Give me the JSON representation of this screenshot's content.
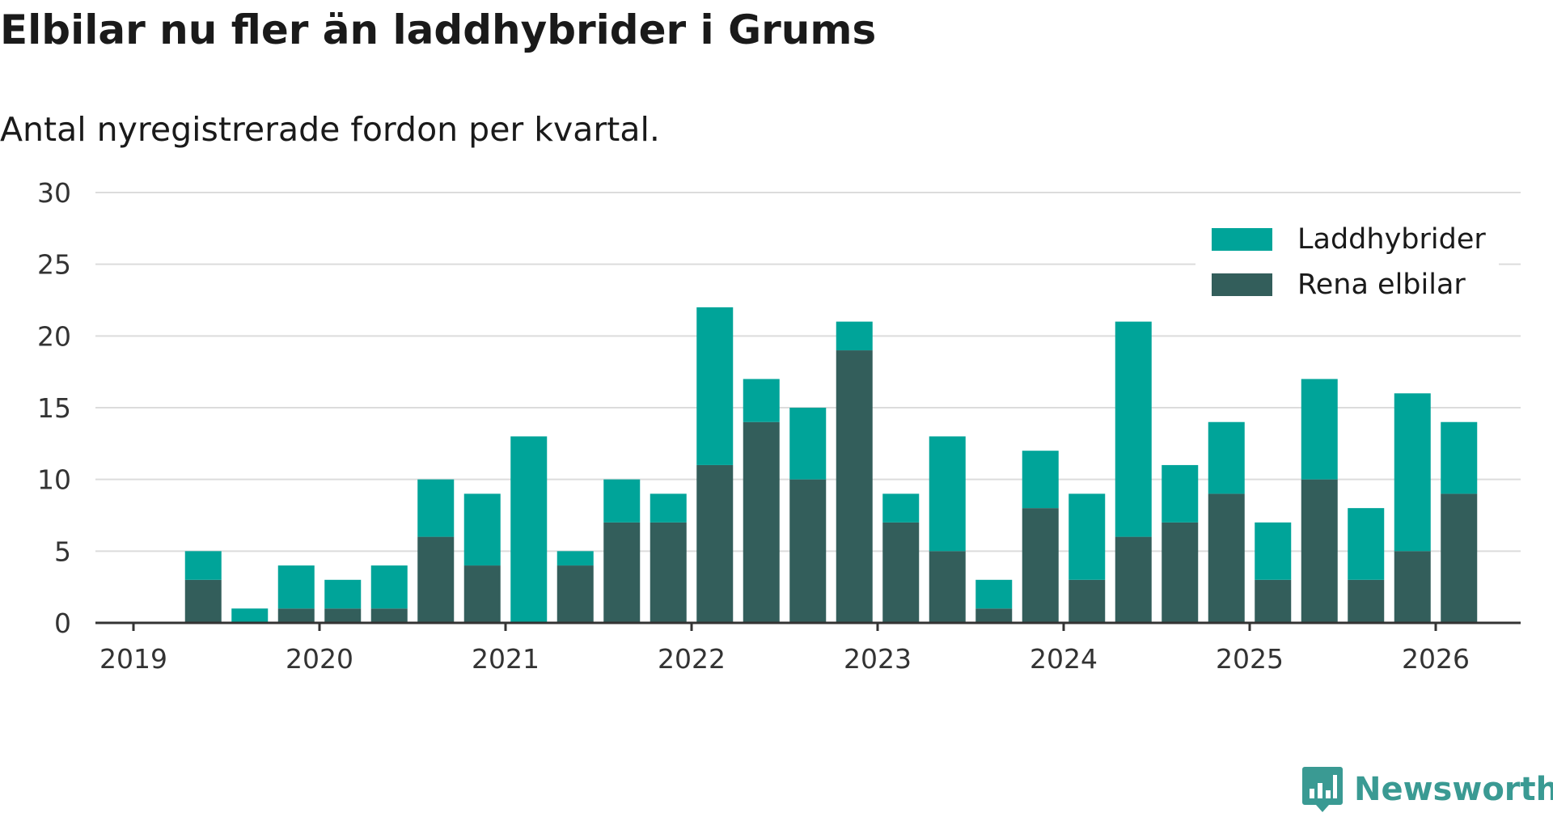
{
  "chart_data": {
    "type": "bar",
    "stacked": true,
    "title": "Elbilar nu fler än laddhybrider i Grums",
    "subtitle": "Antal nyregistrerade fordon per kvartal.",
    "xlabel": "",
    "ylabel": "",
    "ylim": [
      0,
      30
    ],
    "yticks": [
      0,
      5,
      10,
      15,
      20,
      25,
      30
    ],
    "xticks": [
      "2019",
      "2020",
      "2021",
      "2022",
      "2023",
      "2024",
      "2025",
      "2026"
    ],
    "grid": true,
    "legend_position": "top-right",
    "categories": [
      "2019 Q2",
      "2019 Q3",
      "2019 Q4",
      "2020 Q1",
      "2020 Q2",
      "2020 Q3",
      "2020 Q4",
      "2021 Q1",
      "2021 Q2",
      "2021 Q3",
      "2021 Q4",
      "2022 Q1",
      "2022 Q2",
      "2022 Q3",
      "2022 Q4",
      "2023 Q1",
      "2023 Q2",
      "2023 Q3",
      "2023 Q4",
      "2024 Q1",
      "2024 Q2",
      "2024 Q3",
      "2024 Q4",
      "2025 Q1",
      "2025 Q2",
      "2025 Q3",
      "2025 Q4",
      "2026 Q1"
    ],
    "series": [
      {
        "name": "Rena elbilar",
        "color": "#335e5b",
        "values": [
          3,
          0,
          1,
          1,
          1,
          6,
          4,
          0,
          4,
          7,
          7,
          11,
          14,
          10,
          19,
          7,
          5,
          1,
          8,
          3,
          6,
          7,
          9,
          3,
          10,
          3,
          5,
          9
        ]
      },
      {
        "name": "Laddhybrider",
        "color": "#00a499",
        "values": [
          2,
          1,
          3,
          2,
          3,
          4,
          5,
          13,
          1,
          3,
          2,
          11,
          3,
          5,
          2,
          2,
          8,
          2,
          4,
          6,
          15,
          4,
          5,
          4,
          7,
          5,
          11,
          5
        ]
      }
    ]
  },
  "legend": {
    "items": [
      {
        "label": "Laddhybrider",
        "color": "#00a499"
      },
      {
        "label": "Rena elbilar",
        "color": "#335e5b"
      }
    ]
  },
  "brand": {
    "name": "Newsworthy",
    "color": "#3a9a93",
    "icon": "newsworthy-logo-icon"
  }
}
